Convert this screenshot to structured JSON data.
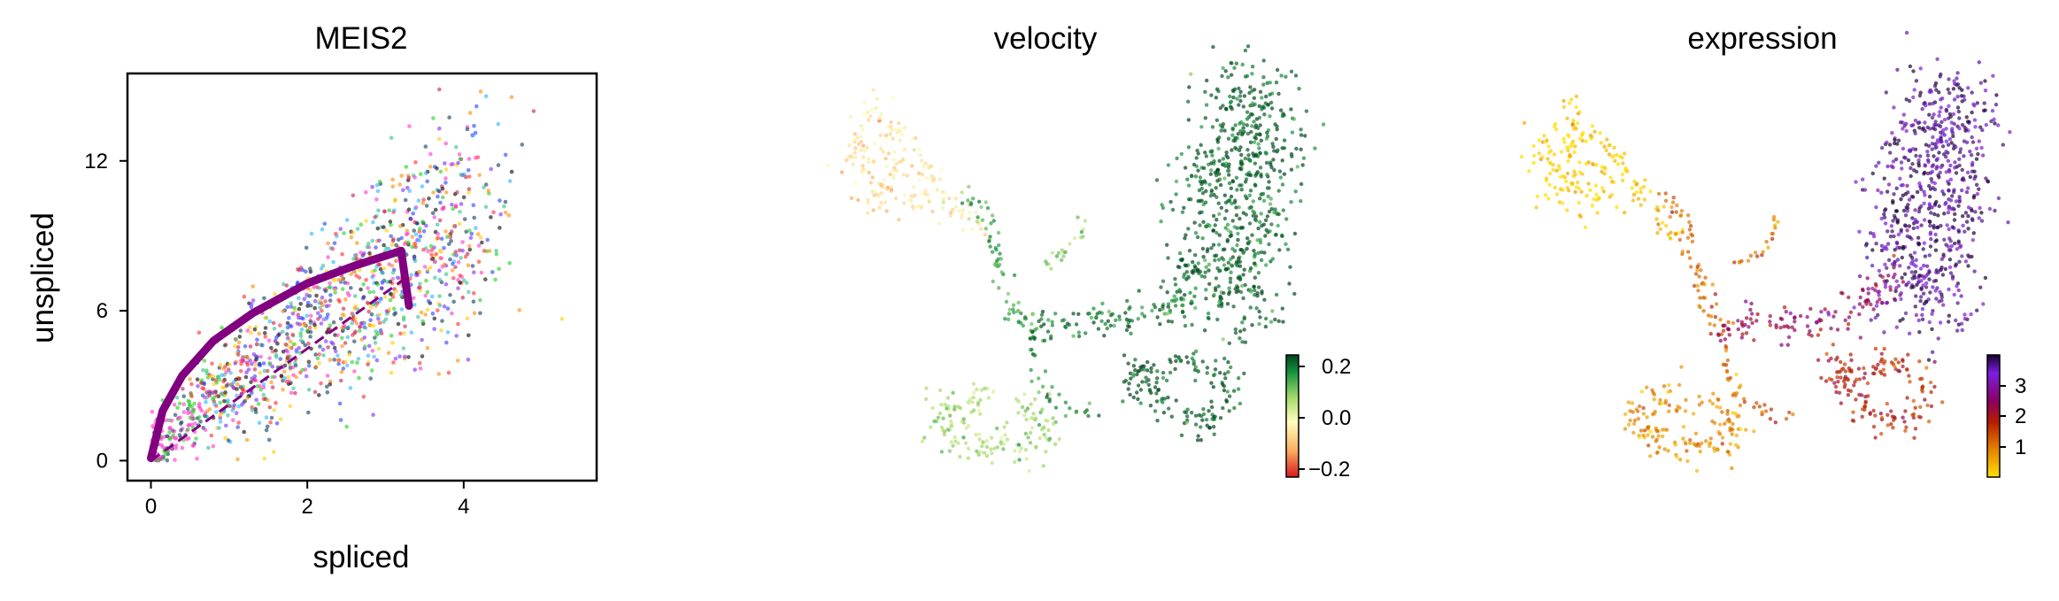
{
  "chart_data": [
    {
      "type": "scatter",
      "title": "MEIS2",
      "xlabel": "spliced",
      "ylabel": "unspliced",
      "xlim": [
        -0.3,
        5.7
      ],
      "ylim": [
        -0.8,
        15.5
      ],
      "xticks": [
        0,
        2,
        4
      ],
      "yticks": [
        0,
        6,
        12
      ],
      "fit_curve": {
        "color": "#800080",
        "points": [
          [
            0,
            0.1
          ],
          [
            0.15,
            2.0
          ],
          [
            0.4,
            3.4
          ],
          [
            0.8,
            4.8
          ],
          [
            1.3,
            5.9
          ],
          [
            2.0,
            7.1
          ],
          [
            2.6,
            7.8
          ],
          [
            3.2,
            8.4
          ]
        ],
        "arrow_end": [
          3.3,
          6.2
        ]
      },
      "steady_state_line": {
        "color": "#800080",
        "dashed": true,
        "points": [
          [
            0,
            0
          ],
          [
            3.3,
            7.4
          ]
        ]
      },
      "grid": false
    },
    {
      "type": "scatter",
      "title": "velocity",
      "colorbar": {
        "ticks": [
          "0.2",
          "0.0",
          "−0.2"
        ],
        "colors": [
          "#d7191c",
          "#fdae61",
          "#ffffbf",
          "#a6d96a",
          "#1a9641",
          "#00441b"
        ]
      },
      "grid": false
    },
    {
      "type": "scatter",
      "title": "expression",
      "colorbar": {
        "ticks": [
          "3",
          "2",
          "1"
        ],
        "colors": [
          "#ffe000",
          "#e07800",
          "#b41e00",
          "#8b0060",
          "#7b1fe0",
          "#2a004a"
        ]
      },
      "grid": false
    }
  ]
}
